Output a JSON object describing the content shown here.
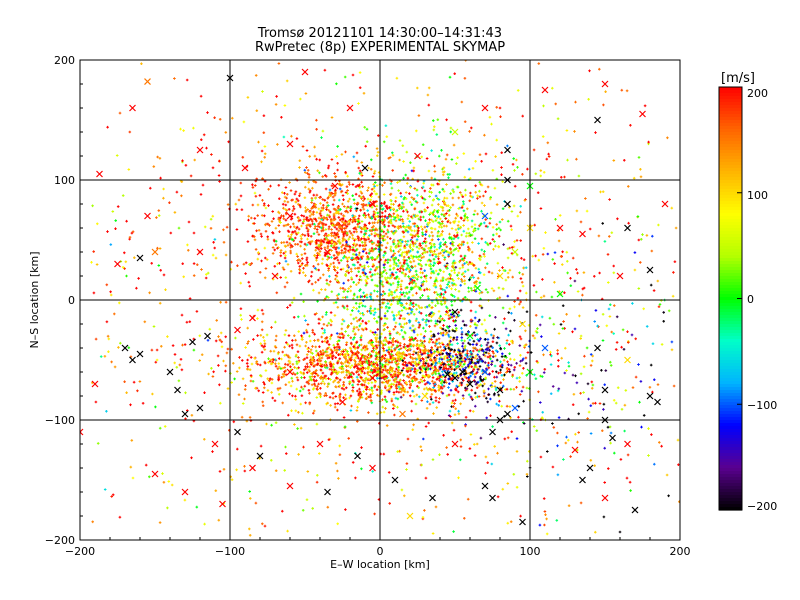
{
  "chart_data": {
    "type": "scatter",
    "title": "Tromsø 20121101 14:30:00–14:31:43",
    "subtitle": "RwPretec (8p) EXPERIMENTAL SKYMAP",
    "xlabel": "E–W location [km]",
    "ylabel": "N–S location [km]",
    "xlim": [
      -200,
      200
    ],
    "ylim": [
      -200,
      200
    ],
    "x_ticks": [
      "−200",
      "−100",
      "0",
      "100",
      "200"
    ],
    "y_ticks": [
      "−200",
      "−100",
      "0",
      "100",
      "200"
    ],
    "grid": true,
    "colorbar": {
      "label": "[m/s]",
      "min": -200,
      "max": 200,
      "ticks": [
        "200",
        "100",
        "0",
        "−100",
        "−200"
      ],
      "colormap": [
        "#000000",
        "#5a0090",
        "#0000ff",
        "#00b4ff",
        "#00ffc8",
        "#00ff00",
        "#b4ff00",
        "#ffff00",
        "#ffb400",
        "#ff6400",
        "#ff0000"
      ]
    },
    "point_clusters": [
      {
        "cx": -30,
        "cy": 60,
        "sx": 25,
        "sy": 22,
        "n": 900,
        "vmean": 170,
        "vsd": 40
      },
      {
        "cx": 15,
        "cy": 20,
        "sx": 28,
        "sy": 45,
        "n": 1000,
        "vmean": 30,
        "vsd": 70
      },
      {
        "cx": 40,
        "cy": 50,
        "sx": 25,
        "sy": 30,
        "n": 500,
        "vmean": 80,
        "vsd": 70
      },
      {
        "cx": 0,
        "cy": -55,
        "sx": 45,
        "sy": 15,
        "n": 1500,
        "vmean": 150,
        "vsd": 70
      },
      {
        "cx": 60,
        "cy": -50,
        "sx": 18,
        "sy": 20,
        "n": 350,
        "vmean": -150,
        "vsd": 60
      },
      {
        "cx": 0,
        "cy": 0,
        "sx": 110,
        "sy": 110,
        "n": 1500,
        "vmean": 140,
        "vsd": 80
      },
      {
        "cx": 140,
        "cy": -60,
        "sx": 40,
        "sy": 60,
        "n": 130,
        "vmean": -100,
        "vsd": 110
      }
    ],
    "crosses": [
      [
        -100,
        185,
        -200
      ],
      [
        -155,
        182,
        150
      ],
      [
        -187,
        105,
        200
      ],
      [
        -150,
        40,
        150
      ],
      [
        -160,
        -45,
        -200
      ],
      [
        -165,
        -50,
        -200
      ],
      [
        -135,
        -75,
        -200
      ],
      [
        -120,
        -90,
        -200
      ],
      [
        -130,
        -95,
        -200
      ],
      [
        -110,
        -120,
        200
      ],
      [
        -150,
        -145,
        200
      ],
      [
        -130,
        -160,
        200
      ],
      [
        -105,
        -170,
        200
      ],
      [
        -60,
        -155,
        200
      ],
      [
        -35,
        -160,
        -200
      ],
      [
        -15,
        -130,
        -200
      ],
      [
        -200,
        -110,
        200
      ],
      [
        -190,
        -70,
        200
      ],
      [
        -85,
        -140,
        200
      ],
      [
        -40,
        -120,
        200
      ],
      [
        -175,
        30,
        200
      ],
      [
        -120,
        40,
        200
      ],
      [
        -160,
        35,
        -200
      ],
      [
        -155,
        70,
        200
      ],
      [
        -115,
        -30,
        -200
      ],
      [
        -125,
        -35,
        -200
      ],
      [
        -140,
        -60,
        -200
      ],
      [
        -170,
        -40,
        -200
      ],
      [
        -95,
        -110,
        -200
      ],
      [
        -80,
        -130,
        -200
      ],
      [
        -50,
        190,
        200
      ],
      [
        -20,
        160,
        200
      ],
      [
        -90,
        110,
        200
      ],
      [
        -120,
        125,
        200
      ],
      [
        -165,
        160,
        200
      ],
      [
        -60,
        130,
        200
      ],
      [
        110,
        175,
        200
      ],
      [
        150,
        180,
        200
      ],
      [
        175,
        155,
        200
      ],
      [
        145,
        150,
        -200
      ],
      [
        85,
        100,
        -200
      ],
      [
        100,
        95,
        0
      ],
      [
        120,
        60,
        200
      ],
      [
        160,
        20,
        200
      ],
      [
        180,
        25,
        -200
      ],
      [
        190,
        80,
        200
      ],
      [
        135,
        55,
        200
      ],
      [
        165,
        60,
        -200
      ],
      [
        120,
        5,
        0
      ],
      [
        145,
        -40,
        -200
      ],
      [
        165,
        -50,
        100
      ],
      [
        150,
        -75,
        -200
      ],
      [
        180,
        -80,
        -200
      ],
      [
        185,
        -85,
        -200
      ],
      [
        150,
        -100,
        -200
      ],
      [
        155,
        -115,
        -200
      ],
      [
        165,
        -120,
        200
      ],
      [
        130,
        -125,
        200
      ],
      [
        140,
        -140,
        -200
      ],
      [
        135,
        -150,
        -200
      ],
      [
        150,
        -165,
        200
      ],
      [
        170,
        -175,
        -200
      ],
      [
        95,
        -185,
        -200
      ],
      [
        70,
        -155,
        -200
      ],
      [
        75,
        -165,
        -200
      ],
      [
        20,
        -180,
        100
      ],
      [
        35,
        -165,
        -200
      ],
      [
        10,
        -150,
        -200
      ],
      [
        -5,
        -140,
        200
      ],
      [
        50,
        -120,
        200
      ],
      [
        75,
        -110,
        -200
      ],
      [
        80,
        -100,
        -200
      ],
      [
        85,
        -95,
        -200
      ],
      [
        90,
        -90,
        -100
      ],
      [
        80,
        -75,
        -200
      ],
      [
        60,
        -70,
        -200
      ],
      [
        55,
        -60,
        -200
      ],
      [
        50,
        -65,
        -200
      ],
      [
        45,
        -62,
        -200
      ],
      [
        70,
        -60,
        -100
      ],
      [
        30,
        -80,
        100
      ],
      [
        100,
        -60,
        0
      ],
      [
        110,
        -40,
        -100
      ],
      [
        95,
        -20,
        100
      ],
      [
        60,
        -30,
        0
      ],
      [
        50,
        -10,
        -200
      ],
      [
        65,
        10,
        0
      ],
      [
        80,
        20,
        100
      ],
      [
        90,
        40,
        50
      ],
      [
        100,
        60,
        100
      ],
      [
        70,
        70,
        -100
      ],
      [
        85,
        80,
        -200
      ],
      [
        -5,
        80,
        200
      ],
      [
        -30,
        95,
        200
      ],
      [
        -10,
        110,
        -200
      ],
      [
        25,
        120,
        200
      ],
      [
        50,
        140,
        50
      ],
      [
        70,
        160,
        200
      ],
      [
        85,
        125,
        -200
      ],
      [
        -60,
        70,
        200
      ],
      [
        -35,
        40,
        200
      ],
      [
        -70,
        20,
        200
      ],
      [
        -85,
        -15,
        200
      ],
      [
        -95,
        -25,
        200
      ],
      [
        -60,
        -60,
        200
      ],
      [
        -25,
        -85,
        200
      ],
      [
        -5,
        -65,
        200
      ],
      [
        15,
        -95,
        150
      ]
    ]
  }
}
